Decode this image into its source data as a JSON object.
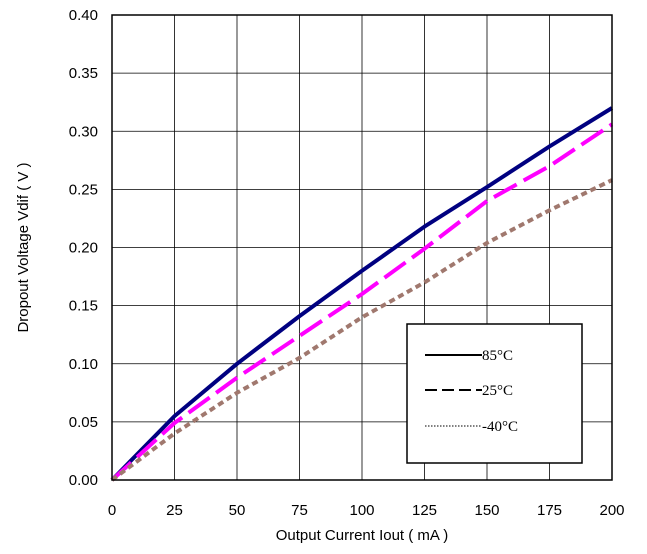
{
  "chart_data": {
    "type": "line",
    "title": "",
    "xlabel": "Output Current Iout ( mA )",
    "ylabel": "Dropout Voltage Vdif ( V )",
    "xlim": [
      0,
      200
    ],
    "ylim": [
      0,
      0.4
    ],
    "xticks": [
      0,
      25,
      50,
      75,
      100,
      125,
      150,
      175,
      200
    ],
    "yticks": [
      0.0,
      0.05,
      0.1,
      0.15,
      0.2,
      0.25,
      0.3,
      0.35,
      0.4
    ],
    "xtick_labels": [
      "0",
      "25",
      "50",
      "75",
      "100",
      "125",
      "150",
      "175",
      "200"
    ],
    "ytick_labels": [
      "0.00",
      "0.05",
      "0.10",
      "0.15",
      "0.20",
      "0.25",
      "0.30",
      "0.35",
      "0.40"
    ],
    "grid": true,
    "legend_position": "lower-right",
    "series": [
      {
        "name": "85°C",
        "color": "#000080",
        "line_style": "solid",
        "x": [
          0,
          25,
          50,
          75,
          100,
          125,
          150,
          175,
          200
        ],
        "y": [
          0,
          0.055,
          0.1,
          0.141,
          0.18,
          0.218,
          0.252,
          0.287,
          0.32
        ]
      },
      {
        "name": "25°C",
        "color": "#ff00ff",
        "line_style": "dashed",
        "x": [
          0,
          25,
          50,
          75,
          100,
          125,
          150,
          175,
          200
        ],
        "y": [
          0,
          0.049,
          0.088,
          0.124,
          0.16,
          0.199,
          0.24,
          0.27,
          0.306
        ]
      },
      {
        "name": "-40°C",
        "color": "#a0786e",
        "line_style": "dotted",
        "x": [
          0,
          25,
          50,
          75,
          100,
          125,
          150,
          175,
          200
        ],
        "y": [
          0,
          0.04,
          0.075,
          0.105,
          0.14,
          0.17,
          0.204,
          0.232,
          0.258
        ]
      }
    ],
    "legend_entries": [
      "85°C",
      "25°C",
      "-40°C"
    ]
  }
}
